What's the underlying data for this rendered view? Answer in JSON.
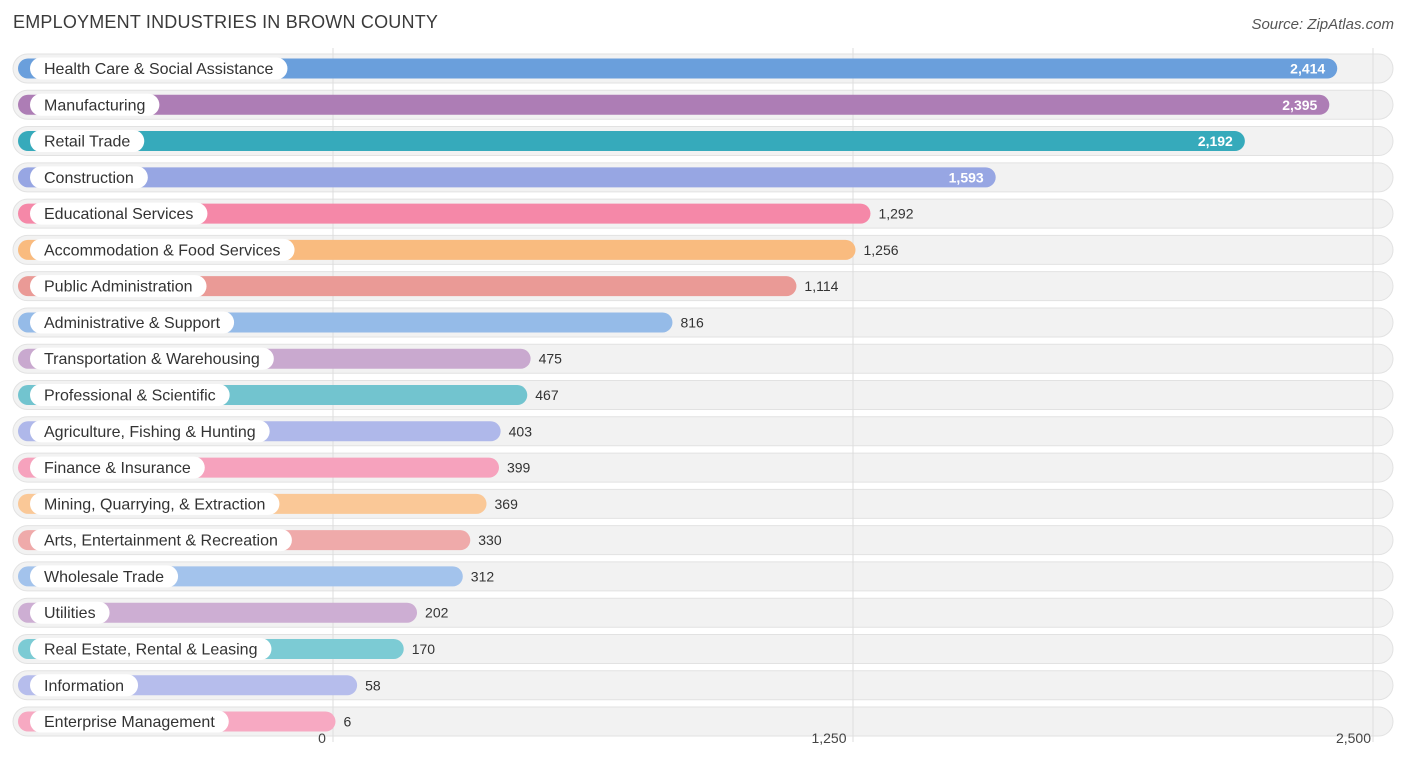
{
  "title": "EMPLOYMENT INDUSTRIES IN BROWN COUNTY",
  "source": "Source: ZipAtlas.com",
  "chart_data": {
    "type": "bar",
    "orientation": "horizontal",
    "title": "EMPLOYMENT INDUSTRIES IN BROWN COUNTY",
    "xlabel": "",
    "ylabel": "",
    "xlim": [
      0,
      2500
    ],
    "ticks": [
      {
        "value": 0,
        "label": "0"
      },
      {
        "value": 1250,
        "label": "1,250"
      },
      {
        "value": 2500,
        "label": "2,500"
      }
    ],
    "grid": true,
    "legend": "none",
    "bars": [
      {
        "category": "Health Care & Social Assistance",
        "value": 2414,
        "label": "2,414",
        "color": "#6a9fdc"
      },
      {
        "category": "Manufacturing",
        "value": 2395,
        "label": "2,395",
        "color": "#ad7db5"
      },
      {
        "category": "Retail Trade",
        "value": 2192,
        "label": "2,192",
        "color": "#36aabb"
      },
      {
        "category": "Construction",
        "value": 1593,
        "label": "1,593",
        "color": "#97a6e3"
      },
      {
        "category": "Educational Services",
        "value": 1292,
        "label": "1,292",
        "color": "#f588a8"
      },
      {
        "category": "Accommodation & Food Services",
        "value": 1256,
        "label": "1,256",
        "color": "#f9bb7f"
      },
      {
        "category": "Public Administration",
        "value": 1114,
        "label": "1,114",
        "color": "#ea9a96"
      },
      {
        "category": "Administrative & Support",
        "value": 816,
        "label": "816",
        "color": "#95bbe8"
      },
      {
        "category": "Transportation & Warehousing",
        "value": 475,
        "label": "475",
        "color": "#c9a9cf"
      },
      {
        "category": "Professional & Scientific",
        "value": 467,
        "label": "467",
        "color": "#72c4cf"
      },
      {
        "category": "Agriculture, Fishing & Hunting",
        "value": 403,
        "label": "403",
        "color": "#afb8ea"
      },
      {
        "category": "Finance & Insurance",
        "value": 399,
        "label": "399",
        "color": "#f6a2bd"
      },
      {
        "category": "Mining, Quarrying, & Extraction",
        "value": 369,
        "label": "369",
        "color": "#fac897"
      },
      {
        "category": "Arts, Entertainment & Recreation",
        "value": 330,
        "label": "330",
        "color": "#efaaaa"
      },
      {
        "category": "Wholesale Trade",
        "value": 312,
        "label": "312",
        "color": "#a3c3ec"
      },
      {
        "category": "Utilities",
        "value": 202,
        "label": "202",
        "color": "#cdaed3"
      },
      {
        "category": "Real Estate, Rental & Leasing",
        "value": 170,
        "label": "170",
        "color": "#7ccbd4"
      },
      {
        "category": "Information",
        "value": 58,
        "label": "58",
        "color": "#b6bdec"
      },
      {
        "category": "Enterprise Management",
        "value": 6,
        "label": "6",
        "color": "#f7a9c2"
      }
    ]
  }
}
